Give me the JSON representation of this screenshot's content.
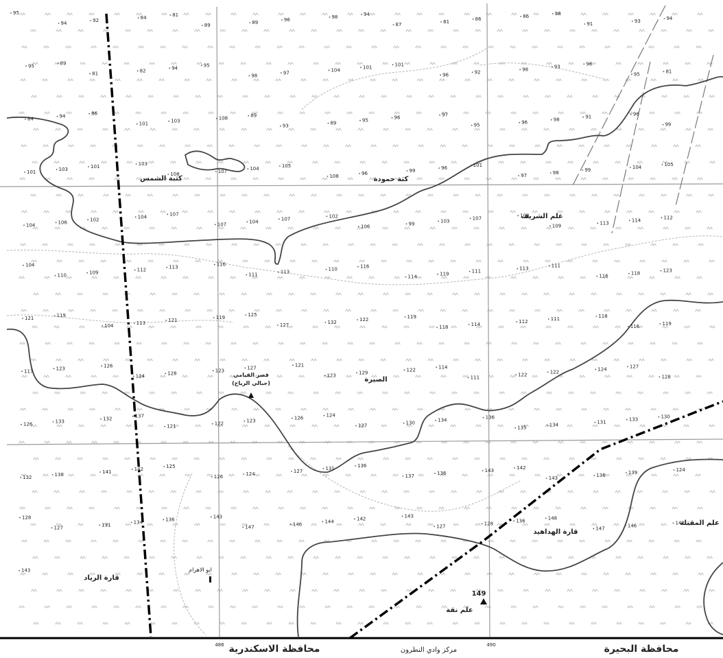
{
  "governorates": {
    "alexandria": "محافظة الاسكندرية",
    "beheira": "محافظة البحيرة"
  },
  "center_label": "مركز وادي النطرون",
  "grid_ticks": {
    "left": "486",
    "right": "490"
  },
  "places": {
    "kattat_shams": "كثبة الشمس",
    "kattat_hamuda": "كثة حمودة",
    "alam_sharif": "علم الشريف",
    "qasr_title": "قصر القيامي",
    "qasr_sub": "(جبالي الرياح)",
    "al_sira": "الصيرة",
    "qaret_hadahid": "قارة الهداهيد",
    "alam_maktala": "علم المقتلة",
    "qaret_rayad": "قارة الرياد",
    "abu_ahram": "ابو الاهرام",
    "alam_naqqa": "علم نقة"
  },
  "summit_value": "149",
  "elevations": [
    "95",
    "94",
    "92",
    "84",
    "81",
    "89",
    "89",
    "96",
    "98",
    "94",
    "87",
    "81",
    "86",
    "86",
    "98",
    "91",
    "93",
    "94",
    "95",
    "89",
    "81",
    "82",
    "94",
    "95",
    "98",
    "97",
    "104",
    "101",
    "101",
    "96",
    "92",
    "98",
    "93",
    "96",
    "95",
    "81",
    "84",
    "94",
    "86",
    "101",
    "103",
    "108",
    "89",
    "93",
    "89",
    "95",
    "96",
    "97",
    "95",
    "96",
    "98",
    "91",
    "96",
    "99",
    "101",
    "103",
    "101",
    "103",
    "108",
    "107",
    "104",
    "105",
    "108",
    "96",
    "99",
    "96",
    "101",
    "97",
    "98",
    "99",
    "104",
    "105",
    "104",
    "106",
    "102",
    "104",
    "107",
    "107",
    "104",
    "107",
    "102",
    "106",
    "99",
    "103",
    "107",
    "108",
    "109",
    "113",
    "114",
    "112",
    "104",
    "110",
    "109",
    "112",
    "113",
    "116",
    "111",
    "113",
    "110",
    "116",
    "114",
    "119",
    "111",
    "113",
    "111",
    "116",
    "118",
    "123",
    "121",
    "119",
    "104",
    "113",
    "121",
    "119",
    "125",
    "127",
    "132",
    "122",
    "119",
    "118",
    "114",
    "112",
    "111",
    "118",
    "116",
    "119",
    "117",
    "123",
    "126",
    "124",
    "128",
    "123",
    "127",
    "121",
    "123",
    "129",
    "122",
    "114",
    "111",
    "122",
    "122",
    "124",
    "127",
    "128",
    "126",
    "133",
    "132",
    "137",
    "121",
    "122",
    "123",
    "126",
    "124",
    "127",
    "130",
    "134",
    "136",
    "135",
    "134",
    "131",
    "133",
    "130",
    "132",
    "138",
    "141",
    "142",
    "125",
    "126",
    "124",
    "127",
    "131",
    "136",
    "137",
    "136",
    "143",
    "142",
    "143",
    "136",
    "139",
    "124",
    "128",
    "127",
    "131",
    "134",
    "136",
    "143",
    "147",
    "146",
    "144",
    "142",
    "143",
    "127",
    "128",
    "136",
    "148",
    "147",
    "146",
    "142",
    "143"
  ]
}
